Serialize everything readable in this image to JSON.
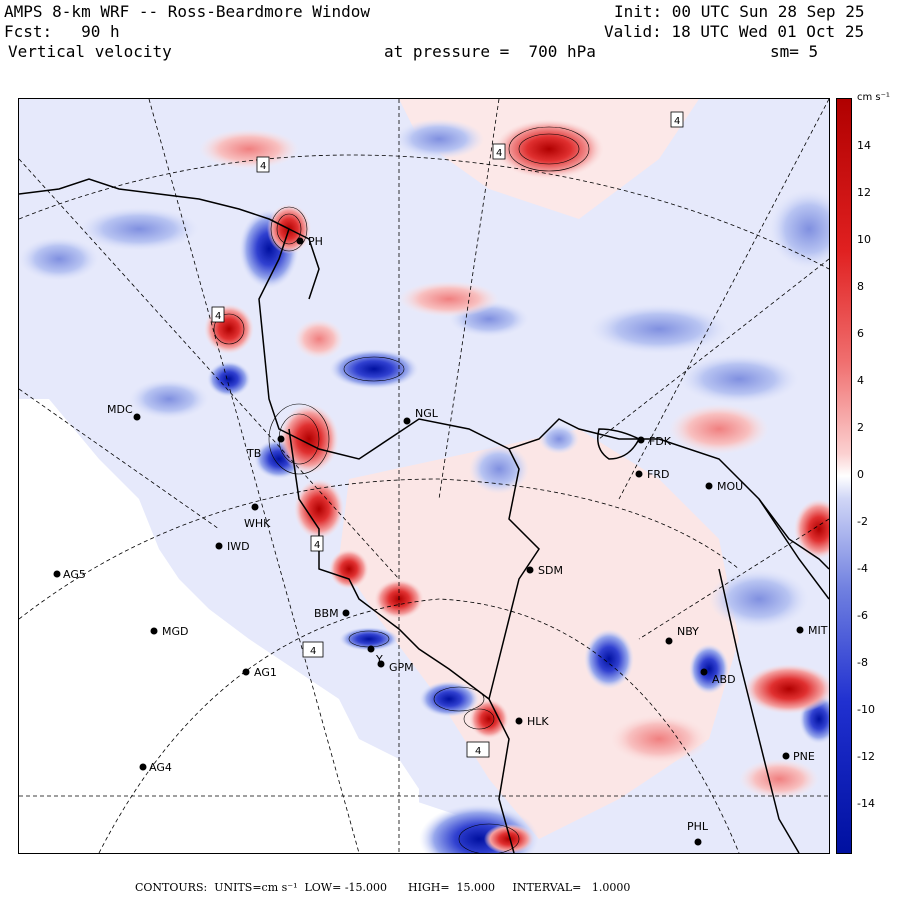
{
  "header": {
    "title": "AMPS 8-km WRF -- Ross-Beardmore Window",
    "forecast": "Fcst:   90 h",
    "field": "Vertical velocity",
    "level": "at pressure =  700 hPa",
    "init": "Init: 00 UTC Sun 28 Sep 25",
    "valid": "Valid: 18 UTC Wed 01 Oct 25",
    "smooth": "sm= 5"
  },
  "colorbar": {
    "unit": "cm s⁻¹",
    "ticks": [
      "14",
      "12",
      "10",
      "8",
      "6",
      "4",
      "2",
      "0",
      "-2",
      "-4",
      "-6",
      "-8",
      "-10",
      "-12",
      "-14"
    ],
    "positive_color": "#b00000",
    "negative_color": "#0010a0",
    "zero_color": "#ffffff"
  },
  "stations": [
    {
      "label": "MDC"
    },
    {
      "label": "NGL"
    },
    {
      "label": "FDK"
    },
    {
      "label": "FRD"
    },
    {
      "label": "MOU"
    },
    {
      "label": "IWD"
    },
    {
      "label": "AG5"
    },
    {
      "label": "SDM"
    },
    {
      "label": "MGD"
    },
    {
      "label": "AG1"
    },
    {
      "label": "AG4"
    },
    {
      "label": "BBM"
    },
    {
      "label": "GPM"
    },
    {
      "label": "HLK"
    },
    {
      "label": "NBY"
    },
    {
      "label": "ABD"
    },
    {
      "label": "PNE"
    },
    {
      "label": "PHL"
    },
    {
      "label": "PH"
    },
    {
      "label": "MIT"
    },
    {
      "label": "WHK"
    },
    {
      "label": "TB"
    },
    {
      "label": "Y"
    }
  ],
  "contour_labels": [
    "4",
    "4",
    "4",
    "4",
    "4",
    "4",
    "4"
  ],
  "footer": {
    "text": "CONTOURS:  UNITS=cm s⁻¹  LOW= -15.000      HIGH=  15.000     INTERVAL=   1.0000"
  }
}
